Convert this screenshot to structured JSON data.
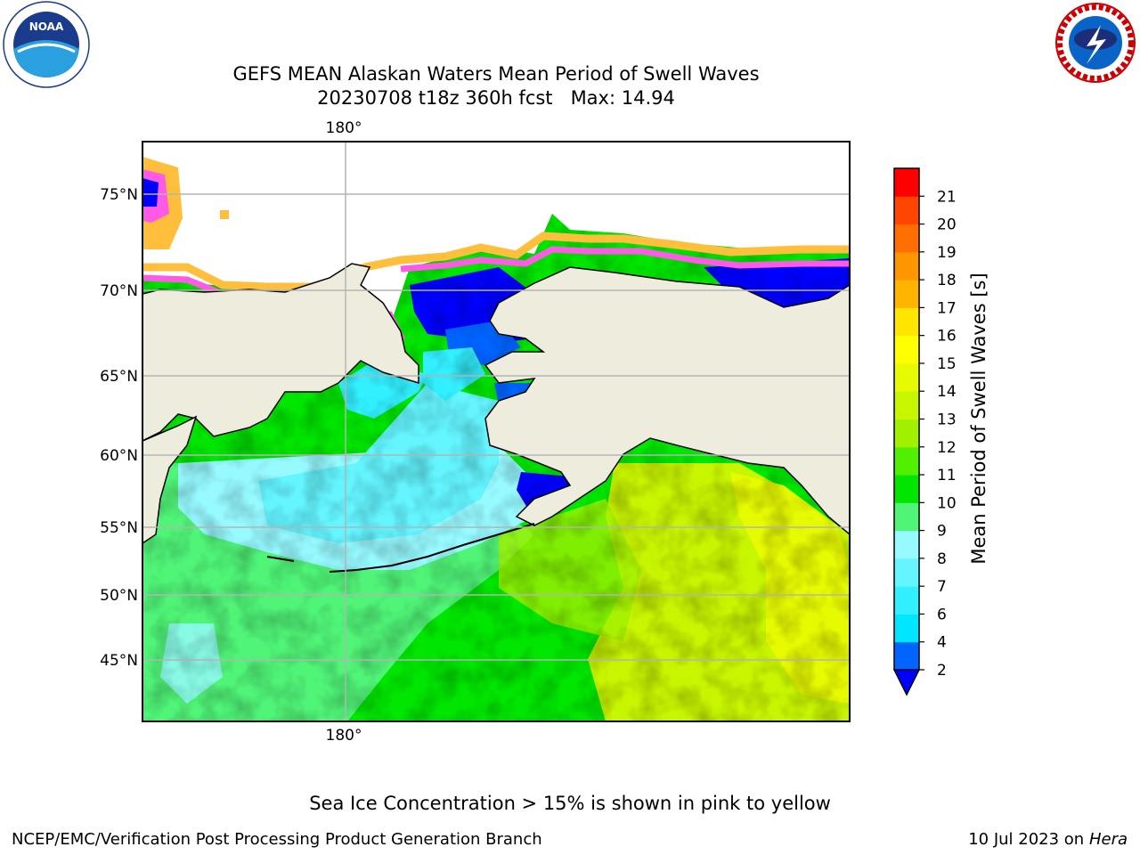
{
  "title": {
    "line1": "GEFS MEAN Alaskan Waters Mean Period of Swell Waves",
    "line2": "20230708 t18z 360h fcst   Max: 14.94"
  },
  "logos": {
    "left": {
      "icon": "noaa-logo",
      "text": "NOAA"
    },
    "right": {
      "icon": "nws-logo",
      "text": "NATIONAL WEATHER SERVICE"
    }
  },
  "map": {
    "lon_top_label": "180°",
    "lon_bottom_label": "180°",
    "lat_labels": [
      "75°N",
      "70°N",
      "65°N",
      "60°N",
      "55°N",
      "50°N",
      "45°N"
    ],
    "colors": {
      "land": "#eeecdc",
      "ocean_ice_white": "#ffffff",
      "ice_orange": "#ffbe3c",
      "ice_pink": "#ff5ae6",
      "grid": "#b4b4b4"
    }
  },
  "colorbar": {
    "label": "Mean Period of Swell Waves [s]",
    "tick_labels": [
      "2",
      "4",
      "6",
      "7",
      "8",
      "9",
      "10",
      "11",
      "12",
      "13",
      "14",
      "15",
      "16",
      "17",
      "18",
      "19",
      "20",
      "21"
    ],
    "colors": [
      "#0064ff",
      "#00e6ff",
      "#32f0ff",
      "#64f5ff",
      "#96faff",
      "#50f578",
      "#00e600",
      "#50f000",
      "#a0f000",
      "#c8f500",
      "#e6fa00",
      "#ffff00",
      "#ffe600",
      "#ffb400",
      "#ff9600",
      "#ff6e00",
      "#ff4600",
      "#ff0000"
    ],
    "extend_color": "#0000ff"
  },
  "caption": "Sea Ice Concentration > 15% is shown in pink to yellow",
  "footer": {
    "left": "NCEP/EMC/Verification Post Processing Product Generation Branch",
    "right_prefix": "10 Jul 2023 on ",
    "right_machine": "Hera"
  }
}
